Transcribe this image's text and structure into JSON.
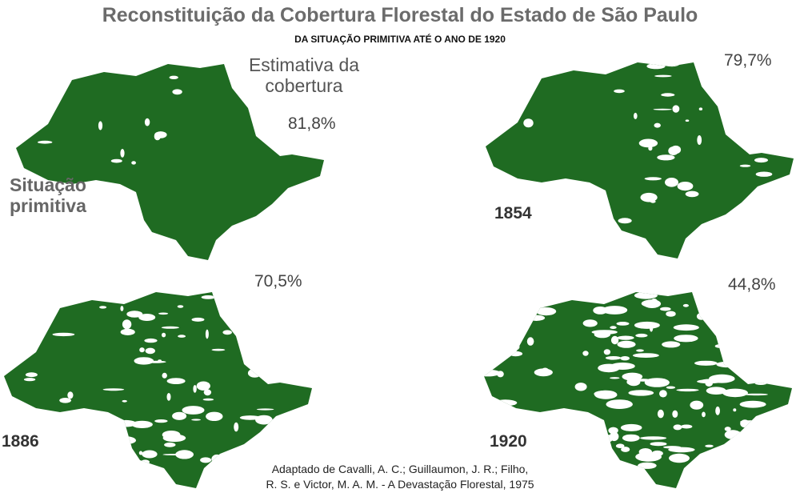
{
  "header": {
    "title": "Reconstituição da Cobertura Florestal do Estado de São Paulo",
    "subtitle": "DA SITUAÇÃO PRIMITIVA ATÉ O ANO DE 1920"
  },
  "note": [
    "Estimativa da",
    "cobertura"
  ],
  "panels": [
    {
      "label": [
        "Situação",
        "primitiva"
      ],
      "coverage": "81,8%"
    },
    {
      "label": "1854",
      "coverage": "79,7%"
    },
    {
      "label": "1886",
      "coverage": "70,5%"
    },
    {
      "label": "1920",
      "coverage": "44,8%"
    }
  ],
  "source": [
    "Adaptado de Cavalli, A. C.; Guillaumon, J. R.; Filho,",
    "R. S. e Victor, M. A. M. - A Devastação Florestal, 1975"
  ]
}
